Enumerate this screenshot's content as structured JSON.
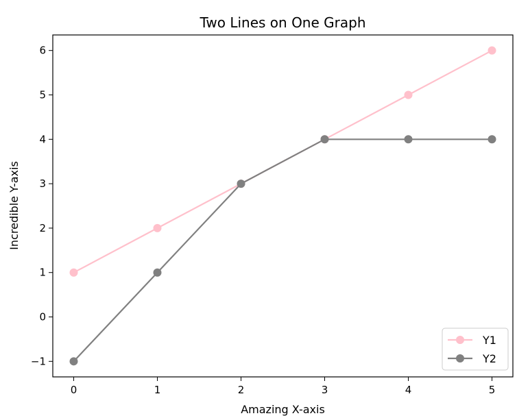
{
  "chart_data": {
    "type": "line",
    "title": "Two Lines on One Graph",
    "xlabel": "Amazing X-axis",
    "ylabel": "Incredible Y-axis",
    "x": [
      0,
      1,
      2,
      3,
      4,
      5
    ],
    "xticks": [
      "0",
      "1",
      "2",
      "3",
      "4",
      "5"
    ],
    "yticks": [
      "−1",
      "0",
      "1",
      "2",
      "3",
      "4",
      "5",
      "6"
    ],
    "xlim": [
      -0.25,
      5.25
    ],
    "ylim": [
      -1.35,
      6.35
    ],
    "grid": false,
    "legend_position": "bottom-right",
    "series": [
      {
        "name": "Y1",
        "values": [
          1,
          2,
          3,
          4,
          5,
          6
        ],
        "color": "#ffc0cb"
      },
      {
        "name": "Y2",
        "values": [
          -1,
          1,
          3,
          4,
          4,
          4
        ],
        "color": "#808080"
      }
    ]
  }
}
